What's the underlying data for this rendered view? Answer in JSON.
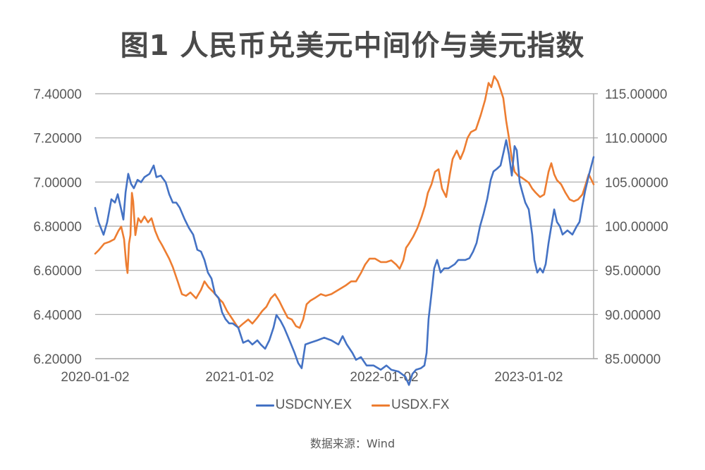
{
  "title": "图1 人民币兑美元中间价与美元指数",
  "source": "数据来源：Wind",
  "colors": {
    "usdcny": "#4472C4",
    "usdx": "#ED7D31",
    "grid": "#A6A6A6",
    "text": "#595959"
  },
  "chart_data": {
    "type": "line",
    "title": "图1 人民币兑美元中间价与美元指数",
    "xlabel": "",
    "ylabel_left": "USDCNY.EX",
    "ylabel_right": "USDX.FX",
    "x_ticks": [
      "2020-01-02",
      "2021-01-02",
      "2022-01-02",
      "2023-01-02"
    ],
    "x_range": [
      "2020-01-02",
      "2023-05-15"
    ],
    "y_left_ticks": [
      "6.20000",
      "6.40000",
      "6.60000",
      "6.80000",
      "7.00000",
      "7.20000",
      "7.40000"
    ],
    "y_left_range": [
      6.2,
      7.4
    ],
    "y_right_ticks": [
      "85.00000",
      "90.00000",
      "95.00000",
      "100.00000",
      "105.00000",
      "110.00000",
      "115.00000"
    ],
    "y_right_range": [
      85,
      115
    ],
    "grid": true,
    "legend_position": "bottom",
    "legend": [
      "USDCNY.EX",
      "USDX.FX"
    ],
    "series": [
      {
        "name": "USDCNY.EX",
        "axis": "left",
        "color": "#4472C4",
        "points": [
          [
            0.0,
            6.883
          ],
          [
            0.024,
            6.818
          ],
          [
            0.058,
            6.761
          ],
          [
            0.083,
            6.818
          ],
          [
            0.112,
            6.922
          ],
          [
            0.137,
            6.907
          ],
          [
            0.156,
            6.945
          ],
          [
            0.18,
            6.876
          ],
          [
            0.195,
            6.83
          ],
          [
            0.21,
            6.953
          ],
          [
            0.229,
            7.037
          ],
          [
            0.249,
            6.991
          ],
          [
            0.268,
            6.972
          ],
          [
            0.293,
            7.01
          ],
          [
            0.317,
            6.999
          ],
          [
            0.341,
            7.022
          ],
          [
            0.376,
            7.037
          ],
          [
            0.405,
            7.075
          ],
          [
            0.424,
            7.022
          ],
          [
            0.454,
            7.029
          ],
          [
            0.488,
            6.999
          ],
          [
            0.512,
            6.945
          ],
          [
            0.537,
            6.907
          ],
          [
            0.561,
            6.907
          ],
          [
            0.585,
            6.884
          ],
          [
            0.62,
            6.83
          ],
          [
            0.649,
            6.792
          ],
          [
            0.678,
            6.762
          ],
          [
            0.707,
            6.693
          ],
          [
            0.732,
            6.685
          ],
          [
            0.756,
            6.647
          ],
          [
            0.78,
            6.59
          ],
          [
            0.805,
            6.563
          ],
          [
            0.829,
            6.494
          ],
          [
            0.854,
            6.475
          ],
          [
            0.878,
            6.41
          ],
          [
            0.902,
            6.379
          ],
          [
            0.927,
            6.36
          ],
          [
            0.951,
            6.36
          ],
          [
            0.99,
            6.341
          ],
          [
            1.024,
            6.272
          ],
          [
            1.059,
            6.283
          ],
          [
            1.088,
            6.264
          ],
          [
            1.122,
            6.283
          ],
          [
            1.146,
            6.264
          ],
          [
            1.176,
            6.245
          ],
          [
            1.205,
            6.283
          ],
          [
            1.234,
            6.341
          ],
          [
            1.254,
            6.398
          ],
          [
            1.283,
            6.371
          ],
          [
            1.307,
            6.341
          ],
          [
            1.332,
            6.302
          ],
          [
            1.356,
            6.264
          ],
          [
            1.38,
            6.226
          ],
          [
            1.405,
            6.18
          ],
          [
            1.429,
            6.157
          ],
          [
            1.454,
            6.264
          ],
          [
            1.488,
            6.272
          ],
          [
            1.537,
            6.283
          ],
          [
            1.585,
            6.295
          ],
          [
            1.634,
            6.283
          ],
          [
            1.683,
            6.264
          ],
          [
            1.712,
            6.302
          ],
          [
            1.741,
            6.264
          ],
          [
            1.78,
            6.226
          ],
          [
            1.805,
            6.195
          ],
          [
            1.839,
            6.207
          ],
          [
            1.878,
            6.169
          ],
          [
            1.927,
            6.169
          ],
          [
            1.976,
            6.15
          ],
          [
            2.015,
            6.169
          ],
          [
            2.049,
            6.15
          ],
          [
            2.098,
            6.142
          ],
          [
            2.146,
            6.119
          ],
          [
            2.171,
            6.081
          ],
          [
            2.195,
            6.131
          ],
          [
            2.22,
            6.15
          ],
          [
            2.254,
            6.157
          ],
          [
            2.278,
            6.169
          ],
          [
            2.293,
            6.226
          ],
          [
            2.307,
            6.379
          ],
          [
            2.327,
            6.494
          ],
          [
            2.346,
            6.609
          ],
          [
            2.366,
            6.647
          ],
          [
            2.39,
            6.59
          ],
          [
            2.415,
            6.609
          ],
          [
            2.444,
            6.609
          ],
          [
            2.488,
            6.628
          ],
          [
            2.512,
            6.647
          ],
          [
            2.537,
            6.647
          ],
          [
            2.561,
            6.647
          ],
          [
            2.59,
            6.655
          ],
          [
            2.615,
            6.685
          ],
          [
            2.639,
            6.724
          ],
          [
            2.663,
            6.8
          ],
          [
            2.688,
            6.857
          ],
          [
            2.712,
            6.922
          ],
          [
            2.737,
            7.01
          ],
          [
            2.756,
            7.048
          ],
          [
            2.78,
            7.06
          ],
          [
            2.805,
            7.075
          ],
          [
            2.829,
            7.144
          ],
          [
            2.844,
            7.19
          ],
          [
            2.863,
            7.125
          ],
          [
            2.883,
            7.029
          ],
          [
            2.902,
            7.163
          ],
          [
            2.917,
            7.144
          ],
          [
            2.937,
            6.999
          ],
          [
            2.956,
            6.953
          ],
          [
            2.976,
            6.907
          ],
          [
            3.0,
            6.876
          ],
          [
            3.024,
            6.762
          ],
          [
            3.039,
            6.647
          ],
          [
            3.059,
            6.59
          ],
          [
            3.078,
            6.609
          ],
          [
            3.098,
            6.59
          ],
          [
            3.117,
            6.628
          ],
          [
            3.137,
            6.724
          ],
          [
            3.156,
            6.8
          ],
          [
            3.176,
            6.876
          ],
          [
            3.195,
            6.819
          ],
          [
            3.215,
            6.8
          ],
          [
            3.234,
            6.762
          ],
          [
            3.268,
            6.781
          ],
          [
            3.302,
            6.762
          ],
          [
            3.332,
            6.8
          ],
          [
            3.351,
            6.819
          ],
          [
            3.371,
            6.895
          ],
          [
            3.39,
            6.96
          ],
          [
            3.415,
            7.029
          ],
          [
            3.449,
            7.113
          ]
        ]
      },
      {
        "name": "USDX.FX",
        "axis": "right",
        "color": "#ED7D31",
        "points": [
          [
            0.0,
            96.89
          ],
          [
            0.024,
            97.27
          ],
          [
            0.063,
            98.03
          ],
          [
            0.098,
            98.23
          ],
          [
            0.132,
            98.52
          ],
          [
            0.161,
            99.47
          ],
          [
            0.18,
            99.95
          ],
          [
            0.2,
            98.52
          ],
          [
            0.215,
            95.65
          ],
          [
            0.224,
            94.7
          ],
          [
            0.234,
            98.03
          ],
          [
            0.244,
            98.99
          ],
          [
            0.254,
            103.77
          ],
          [
            0.263,
            102.82
          ],
          [
            0.278,
            98.99
          ],
          [
            0.298,
            100.9
          ],
          [
            0.317,
            100.43
          ],
          [
            0.341,
            101.09
          ],
          [
            0.366,
            100.43
          ],
          [
            0.39,
            100.9
          ],
          [
            0.415,
            99.47
          ],
          [
            0.439,
            98.52
          ],
          [
            0.463,
            97.85
          ],
          [
            0.488,
            97.08
          ],
          [
            0.512,
            96.32
          ],
          [
            0.537,
            95.37
          ],
          [
            0.571,
            93.74
          ],
          [
            0.6,
            92.31
          ],
          [
            0.629,
            92.12
          ],
          [
            0.659,
            92.5
          ],
          [
            0.698,
            91.83
          ],
          [
            0.732,
            92.79
          ],
          [
            0.756,
            93.75
          ],
          [
            0.785,
            93.08
          ],
          [
            0.82,
            92.5
          ],
          [
            0.854,
            91.83
          ],
          [
            0.883,
            91.36
          ],
          [
            0.912,
            90.4
          ],
          [
            0.951,
            89.44
          ],
          [
            0.99,
            88.49
          ],
          [
            1.024,
            88.97
          ],
          [
            1.059,
            89.44
          ],
          [
            1.088,
            88.97
          ],
          [
            1.122,
            89.64
          ],
          [
            1.156,
            90.4
          ],
          [
            1.185,
            90.88
          ],
          [
            1.215,
            91.83
          ],
          [
            1.244,
            92.31
          ],
          [
            1.273,
            91.55
          ],
          [
            1.302,
            90.59
          ],
          [
            1.332,
            89.64
          ],
          [
            1.361,
            89.44
          ],
          [
            1.39,
            88.68
          ],
          [
            1.415,
            88.49
          ],
          [
            1.439,
            89.44
          ],
          [
            1.463,
            91.16
          ],
          [
            1.488,
            91.55
          ],
          [
            1.527,
            91.93
          ],
          [
            1.561,
            92.31
          ],
          [
            1.595,
            92.12
          ],
          [
            1.634,
            92.31
          ],
          [
            1.683,
            92.79
          ],
          [
            1.732,
            93.27
          ],
          [
            1.771,
            93.75
          ],
          [
            1.805,
            93.75
          ],
          [
            1.839,
            94.7
          ],
          [
            1.868,
            95.65
          ],
          [
            1.898,
            96.32
          ],
          [
            1.937,
            96.32
          ],
          [
            1.976,
            95.94
          ],
          [
            2.015,
            95.94
          ],
          [
            2.049,
            96.13
          ],
          [
            2.083,
            95.65
          ],
          [
            2.107,
            95.18
          ],
          [
            2.132,
            96.13
          ],
          [
            2.151,
            97.56
          ],
          [
            2.171,
            98.03
          ],
          [
            2.2,
            98.8
          ],
          [
            2.229,
            99.75
          ],
          [
            2.259,
            101.09
          ],
          [
            2.283,
            102.34
          ],
          [
            2.302,
            103.77
          ],
          [
            2.327,
            104.72
          ],
          [
            2.351,
            106.16
          ],
          [
            2.376,
            106.45
          ],
          [
            2.4,
            104.25
          ],
          [
            2.429,
            103.3
          ],
          [
            2.454,
            105.88
          ],
          [
            2.473,
            107.6
          ],
          [
            2.502,
            108.56
          ],
          [
            2.527,
            107.6
          ],
          [
            2.551,
            108.56
          ],
          [
            2.576,
            109.99
          ],
          [
            2.6,
            110.66
          ],
          [
            2.634,
            110.95
          ],
          [
            2.668,
            112.58
          ],
          [
            2.698,
            114.3
          ],
          [
            2.722,
            116.22
          ],
          [
            2.741,
            115.74
          ],
          [
            2.761,
            116.99
          ],
          [
            2.785,
            116.41
          ],
          [
            2.805,
            115.46
          ],
          [
            2.824,
            114.5
          ],
          [
            2.844,
            111.92
          ],
          [
            2.863,
            110.0
          ],
          [
            2.883,
            107.6
          ],
          [
            2.902,
            106.17
          ],
          [
            2.927,
            105.69
          ],
          [
            2.951,
            105.5
          ],
          [
            2.976,
            105.21
          ],
          [
            3.0,
            104.93
          ],
          [
            3.024,
            104.26
          ],
          [
            3.049,
            103.78
          ],
          [
            3.078,
            103.3
          ],
          [
            3.107,
            103.59
          ],
          [
            3.137,
            106.17
          ],
          [
            3.156,
            107.13
          ],
          [
            3.176,
            105.88
          ],
          [
            3.195,
            105.21
          ],
          [
            3.224,
            104.74
          ],
          [
            3.254,
            103.78
          ],
          [
            3.283,
            103.02
          ],
          [
            3.312,
            102.82
          ],
          [
            3.341,
            103.02
          ],
          [
            3.371,
            103.59
          ],
          [
            3.39,
            104.55
          ],
          [
            3.415,
            105.88
          ],
          [
            3.449,
            104.74
          ]
        ]
      }
    ]
  }
}
